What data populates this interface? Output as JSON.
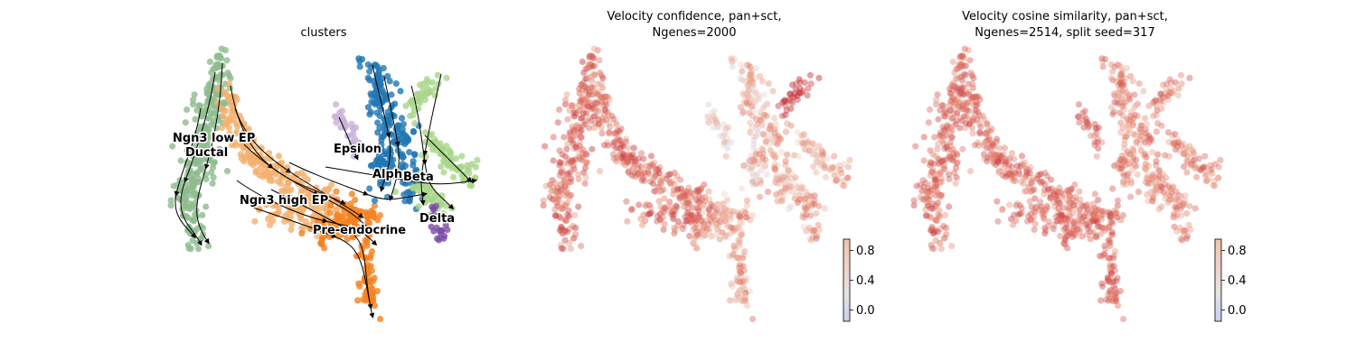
{
  "chart_data": [
    {
      "type": "scatter",
      "title": "clusters",
      "cluster_labels": [
        "Ngn3 low EP",
        "Ductal",
        "Epsilon",
        "Alpha",
        "Beta",
        "Ngn3 high EP",
        "Delta",
        "Pre-endocrine"
      ],
      "cluster_colors": {
        "Ductal": "#8fbc8f",
        "Ngn3 low EP": "#f4b06e",
        "Ngn3 high EP": "#f4b06e",
        "Pre-endocrine": "#f58220",
        "Epsilon": "#c9b1d8",
        "Alpha": "#1f77b4",
        "Beta": "#a8d68a",
        "Delta": "#7d4ea6"
      },
      "overlay": "velocity-streamlines",
      "axes_visible": false
    },
    {
      "type": "scatter",
      "title_line1": "Velocity confidence, pan+sct,",
      "title_line2": "Ngenes=2000",
      "colormap": "coolwarm",
      "colorbar_ticks": [
        "0.8",
        "0.4",
        "0.0"
      ],
      "colorbar_tick_values": [
        0.8,
        0.4,
        0.0
      ],
      "colorbar_range": [
        -0.15,
        0.95
      ],
      "axes_visible": false
    },
    {
      "type": "scatter",
      "title_line1": "Velocity cosine similarity, pan+sct,",
      "title_line2": "Ngenes=2514, split seed=317",
      "colormap": "coolwarm",
      "colorbar_ticks": [
        "0.8",
        "0.4",
        "0.0"
      ],
      "colorbar_tick_values": [
        0.8,
        0.4,
        0.0
      ],
      "colorbar_range": [
        -0.15,
        0.95
      ],
      "axes_visible": false
    }
  ]
}
